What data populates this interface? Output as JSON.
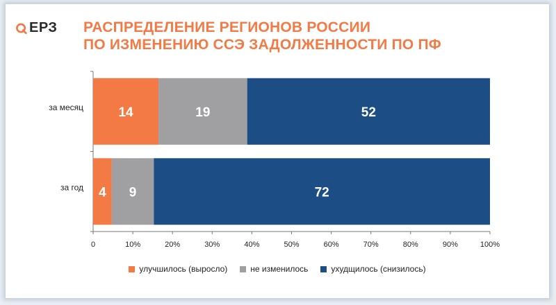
{
  "logo": {
    "text": "ЕРЗ"
  },
  "title": {
    "line1": "РАСПРЕДЕЛЕНИЕ РЕГИОНОВ РОССИИ",
    "line2": "ПО ИЗМЕНЕНИЮ ССЭ ЗАДОЛЖЕННОСТИ ПО ПФ"
  },
  "colors": {
    "orange": "#f37a45",
    "gray": "#a0a0a2",
    "blue": "#1c4e85"
  },
  "chart_data": {
    "type": "bar",
    "orientation": "horizontal",
    "stacked": "percent",
    "categories": [
      "за месяц",
      "за год"
    ],
    "series": [
      {
        "name": "улучшилось (выросло)",
        "values": [
          14,
          4
        ],
        "color": "#f37a45"
      },
      {
        "name": "не изменилось",
        "values": [
          19,
          9
        ],
        "color": "#a0a0a2"
      },
      {
        "name": "ухудщилось (снизилось)",
        "values": [
          52,
          72
        ],
        "color": "#1c4e85"
      }
    ],
    "xlim": [
      0,
      100
    ],
    "xticks": [
      "0",
      "10%",
      "20%",
      "30%",
      "40%",
      "50%",
      "60%",
      "70%",
      "80%",
      "90%",
      "100%"
    ],
    "legend": "bottom"
  }
}
